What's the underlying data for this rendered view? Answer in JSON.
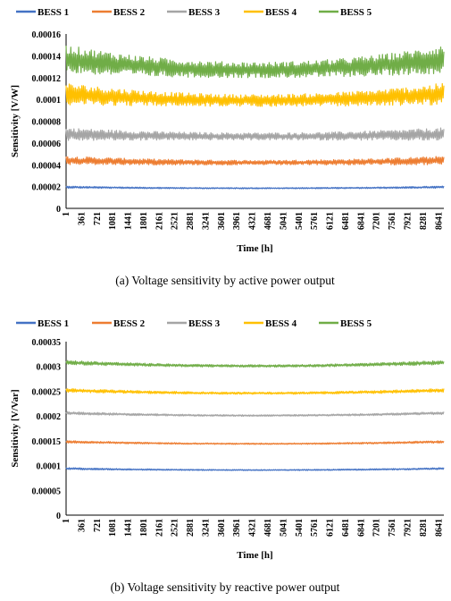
{
  "charts": [
    {
      "type": "line",
      "caption": "(a) Voltage sensitivity by active power output",
      "xlabel": "Time [h]",
      "ylabel": "Sensitivity [V/W]",
      "ylim": [
        0,
        0.00016
      ],
      "yticks": [
        "0",
        "0.00002",
        "0.00004",
        "0.00006",
        "0.00008",
        "0.0001",
        "0.00012",
        "0.00014",
        "0.00016"
      ],
      "xticks": [
        "1",
        "361",
        "721",
        "1081",
        "1441",
        "1801",
        "2161",
        "2521",
        "2881",
        "3241",
        "3601",
        "3961",
        "4321",
        "4681",
        "5041",
        "5401",
        "5761",
        "6121",
        "6481",
        "6841",
        "7201",
        "7561",
        "7921",
        "8281",
        "8641"
      ],
      "xlim": [
        1,
        8760
      ],
      "legend_position": "top",
      "series": [
        {
          "name": "BESS 1",
          "color": "#4472C4",
          "mean_start": 1.95e-05,
          "mean_mid": 1.85e-05,
          "mean_end": 1.95e-05,
          "band": 2e-06
        },
        {
          "name": "BESS 2",
          "color": "#ED7D31",
          "mean_start": 4.4e-05,
          "mean_mid": 4.2e-05,
          "mean_end": 4.4e-05,
          "band": 8e-06
        },
        {
          "name": "BESS 3",
          "color": "#A5A5A5",
          "mean_start": 6.8e-05,
          "mean_mid": 6.6e-05,
          "mean_end": 6.8e-05,
          "band": 1.2e-05
        },
        {
          "name": "BESS 4",
          "color": "#FFC000",
          "mean_start": 0.000105,
          "mean_mid": 9.9e-05,
          "mean_end": 0.000105,
          "band": 2e-05
        },
        {
          "name": "BESS 5",
          "color": "#70AD47",
          "mean_start": 0.000137,
          "mean_mid": 0.000127,
          "mean_end": 0.000137,
          "band": 2.6e-05
        }
      ]
    },
    {
      "type": "line",
      "caption": "(b) Voltage sensitivity by reactive power output",
      "xlabel": "Time [h]",
      "ylabel": "Sensitivity [V/Var]",
      "ylim": [
        0,
        0.00035
      ],
      "yticks": [
        "0",
        "0.00005",
        "0.0001",
        "0.00015",
        "0.0002",
        "0.00025",
        "0.0003",
        "0.00035"
      ],
      "xticks": [
        "1",
        "361",
        "721",
        "1081",
        "1441",
        "1801",
        "2161",
        "2521",
        "2881",
        "3241",
        "3601",
        "3961",
        "4321",
        "4681",
        "5041",
        "5401",
        "5761",
        "6121",
        "6481",
        "6841",
        "7201",
        "7561",
        "7921",
        "8281",
        "8641"
      ],
      "xlim": [
        1,
        8760
      ],
      "legend_position": "top",
      "series": [
        {
          "name": "BESS 1",
          "color": "#4472C4",
          "mean_start": 9.4e-05,
          "mean_mid": 9.1e-05,
          "mean_end": 9.4e-05,
          "band": 4e-06
        },
        {
          "name": "BESS 2",
          "color": "#ED7D31",
          "mean_start": 0.000148,
          "mean_mid": 0.000144,
          "mean_end": 0.000148,
          "band": 5e-06
        },
        {
          "name": "BESS 3",
          "color": "#A5A5A5",
          "mean_start": 0.000206,
          "mean_mid": 0.000201,
          "mean_end": 0.000206,
          "band": 6e-06
        },
        {
          "name": "BESS 4",
          "color": "#FFC000",
          "mean_start": 0.000252,
          "mean_mid": 0.000246,
          "mean_end": 0.000252,
          "band": 8e-06
        },
        {
          "name": "BESS 5",
          "color": "#70AD47",
          "mean_start": 0.000308,
          "mean_mid": 0.000301,
          "mean_end": 0.000308,
          "band": 9e-06
        }
      ]
    }
  ]
}
